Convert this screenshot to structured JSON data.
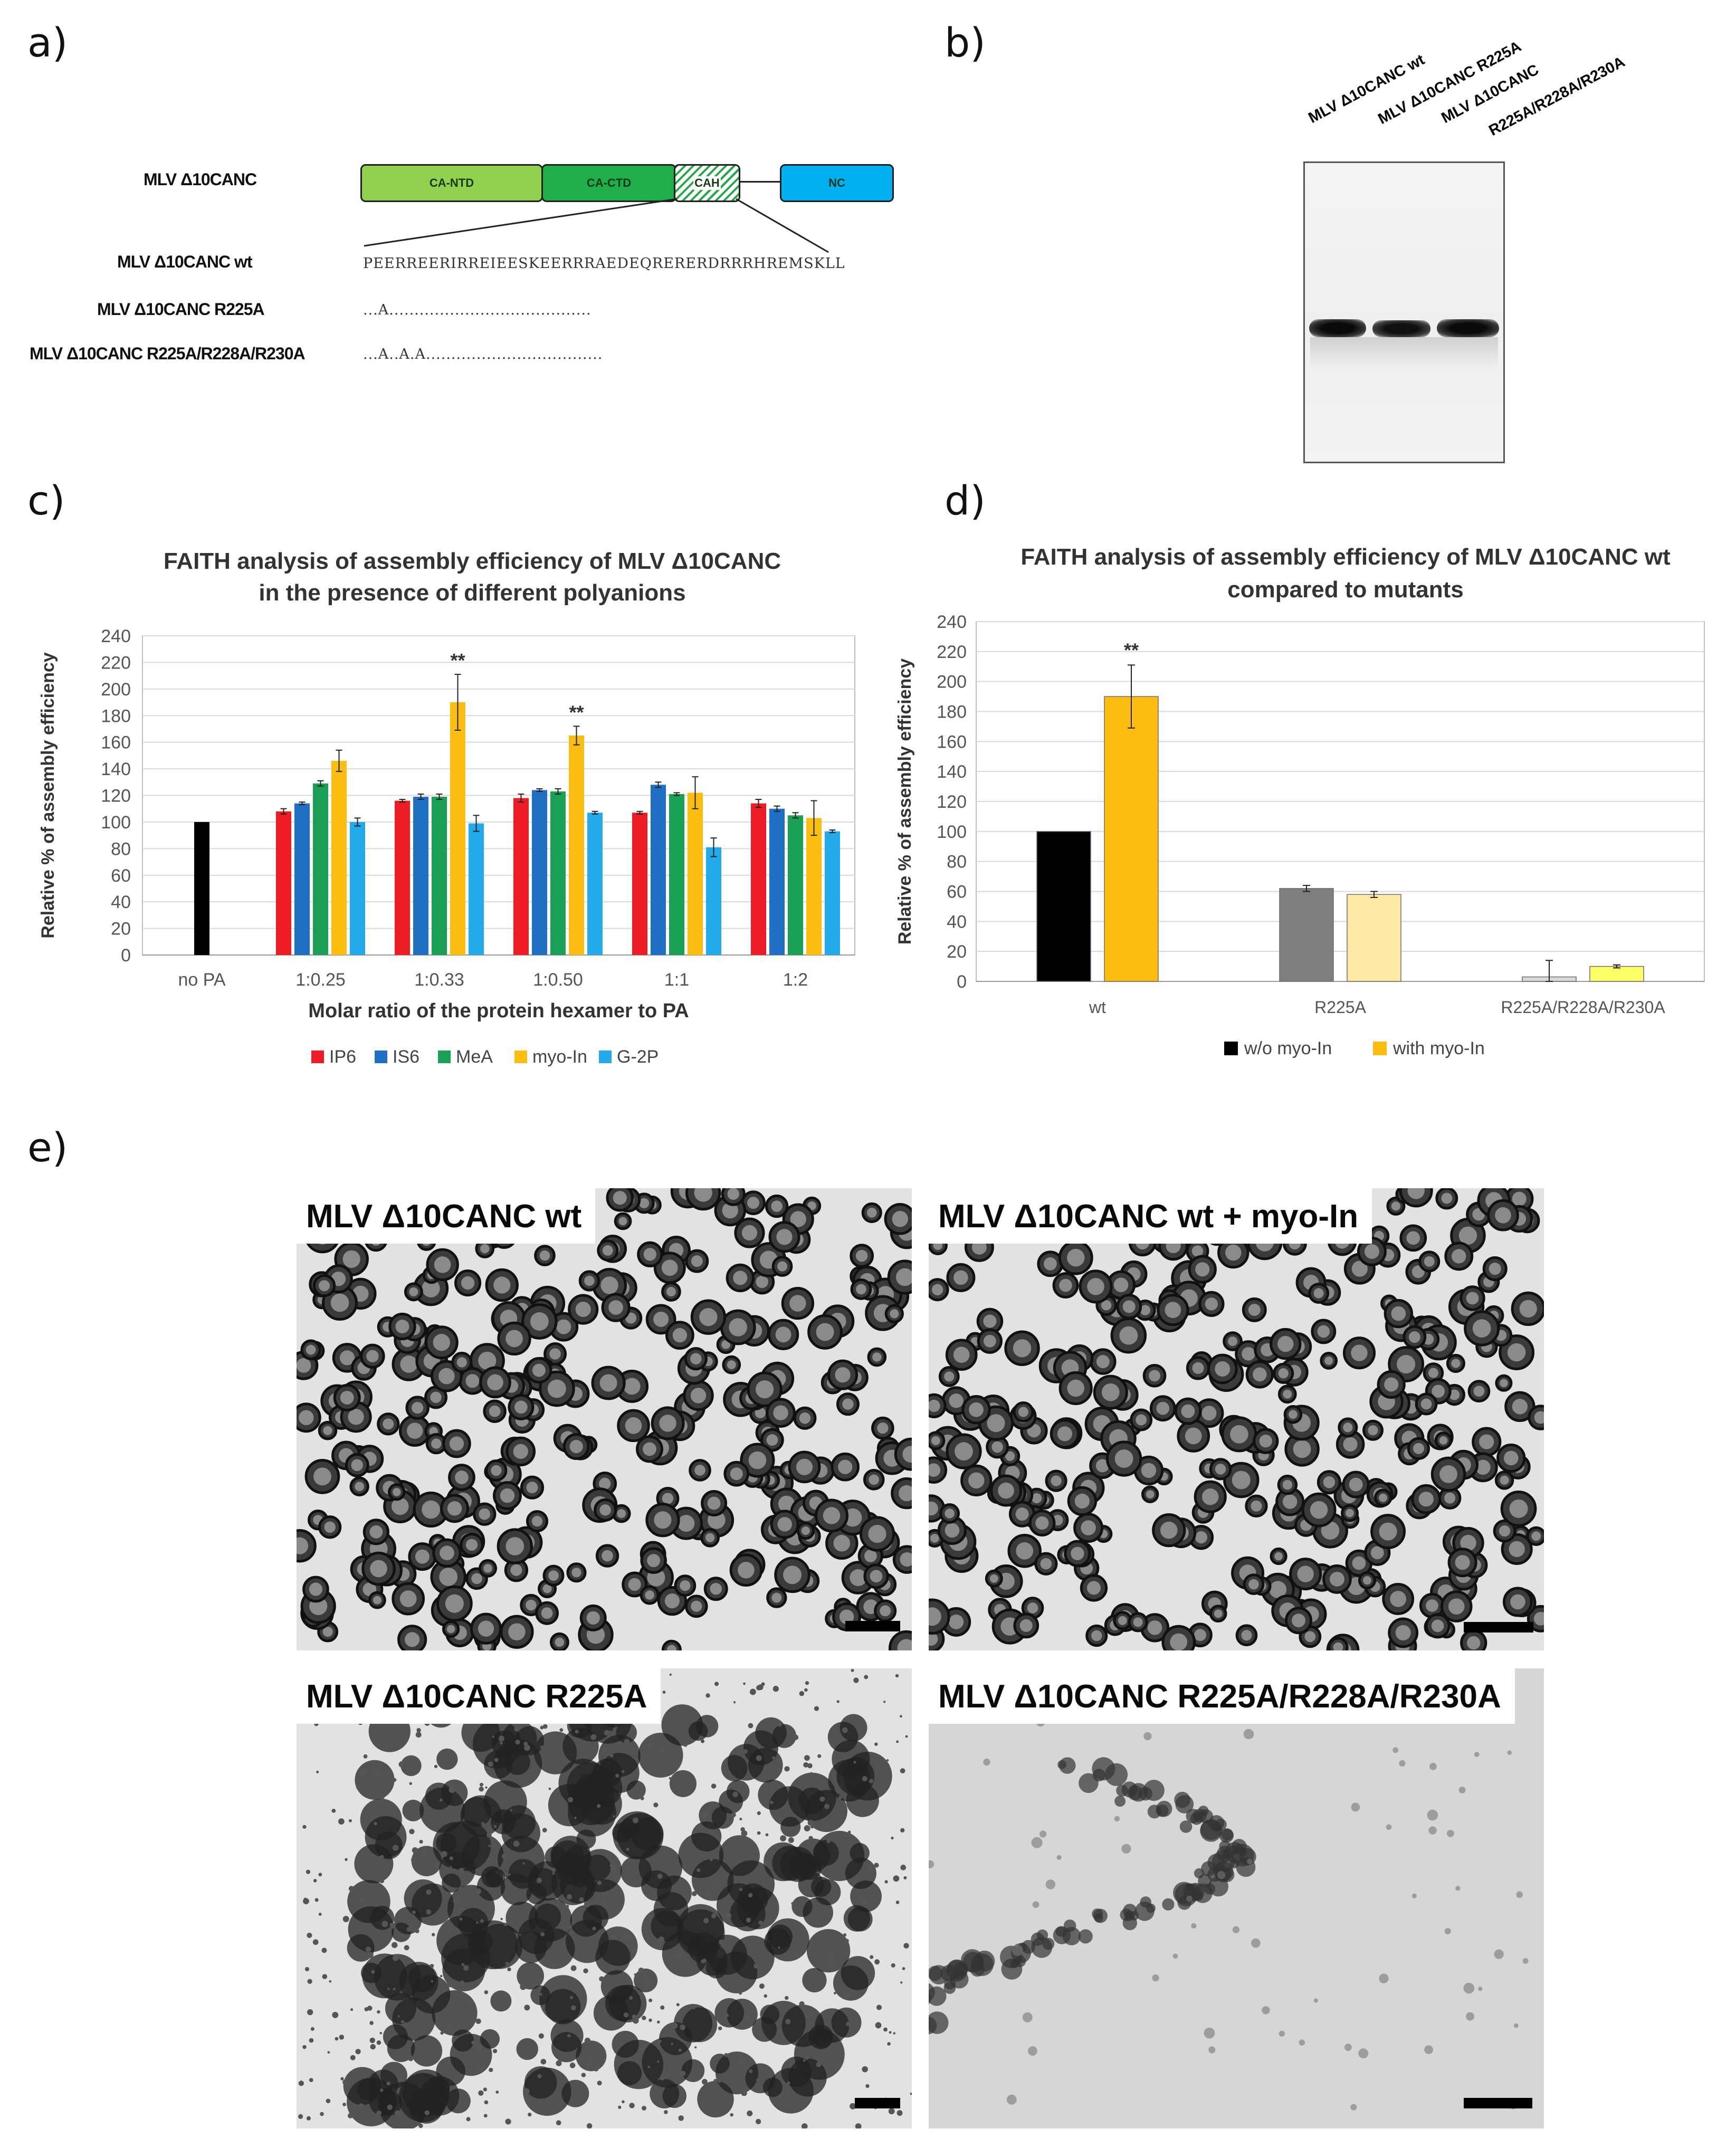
{
  "panels": {
    "a": "a)",
    "b": "b)",
    "c": "c)",
    "d": "d)",
    "e": "e)"
  },
  "construct": {
    "name": "MLV Δ10CANC",
    "domains": [
      "CA-NTD",
      "CA-CTD",
      "CAH",
      "NC"
    ]
  },
  "sequences": [
    {
      "name": "MLV Δ10CANC wt",
      "text": "PEERREERIRREIEESKEERRRAEDEQRERERDRRRHREMSKLL"
    },
    {
      "name": "MLV Δ10CANC R225A",
      "text": "...A........................................"
    },
    {
      "name": "MLV Δ10CANC R225A/R228A/R230A",
      "text": "...A..A.A..................................."
    }
  ],
  "gel": {
    "lanes": [
      "MLV Δ10CANC wt",
      "MLV Δ10CANC R225A",
      "MLV Δ10CANC",
      "R225A/R228A/R230A"
    ]
  },
  "chart_data": [
    {
      "type": "bar",
      "title": "FAITH analysis of assembly efficiency of MLV Δ10CANC",
      "subtitle": "in the presence of different polyanions",
      "xlabel": "Molar ratio of the protein hexamer to PA",
      "ylabel": "Relative % of assembly efficiency",
      "ylim": [
        0,
        240
      ],
      "yticks": [
        0,
        20,
        40,
        60,
        80,
        100,
        120,
        140,
        160,
        180,
        200,
        220,
        240
      ],
      "categories": [
        "no PA",
        "1:0.25",
        "1:0.33",
        "1:0.50",
        "1:1",
        "1:2"
      ],
      "grid": true,
      "legend_position": "bottom",
      "control": {
        "category": "no PA",
        "value": 100,
        "color": "#000000"
      },
      "series": [
        {
          "name": "IP6",
          "color": "#ee1c25",
          "values": [
            null,
            108,
            116,
            118,
            107,
            114
          ],
          "errors": [
            null,
            2,
            1,
            3,
            1,
            3
          ]
        },
        {
          "name": "IS6",
          "color": "#1f6fc4",
          "values": [
            null,
            114,
            119,
            124,
            128,
            110
          ],
          "errors": [
            null,
            1,
            2,
            1,
            2,
            2
          ]
        },
        {
          "name": "MeA",
          "color": "#1aa055",
          "values": [
            null,
            129,
            119,
            123,
            121,
            105
          ],
          "errors": [
            null,
            2,
            2,
            2,
            1,
            2
          ]
        },
        {
          "name": "myo-In",
          "color": "#fbbd0f",
          "values": [
            null,
            146,
            190,
            165,
            122,
            103
          ],
          "errors": [
            null,
            8,
            21,
            7,
            12,
            13
          ]
        },
        {
          "name": "G-2P",
          "color": "#22aaea",
          "values": [
            null,
            100,
            99,
            107,
            81,
            93
          ],
          "errors": [
            null,
            3,
            6,
            1,
            7,
            1
          ]
        }
      ],
      "annotations": [
        {
          "category": "1:0.33",
          "series": "myo-In",
          "text": "**"
        },
        {
          "category": "1:0.50",
          "series": "myo-In",
          "text": "**"
        }
      ]
    },
    {
      "type": "bar",
      "title": "FAITH analysis of assembly efficiency of MLV Δ10CANC wt",
      "subtitle": "compared to mutants",
      "ylabel": "Relative % of assembly efficiency",
      "ylim": [
        0,
        240
      ],
      "yticks": [
        0,
        20,
        40,
        60,
        80,
        100,
        120,
        140,
        160,
        180,
        200,
        220,
        240
      ],
      "categories": [
        "wt",
        "R225A",
        "R225A/R228A/R230A"
      ],
      "grid": true,
      "legend_position": "bottom",
      "series": [
        {
          "name": "w/o myo-In",
          "colors": [
            "#000000",
            "#7f7f7f",
            "#d9d9d9"
          ],
          "values": [
            100,
            62,
            3
          ],
          "errors": [
            0,
            2,
            11
          ]
        },
        {
          "name": "with myo-In",
          "colors": [
            "#fbbd0f",
            "#fde9a4",
            "#ffff66"
          ],
          "values": [
            190,
            58,
            10
          ],
          "errors": [
            21,
            2,
            1
          ]
        }
      ],
      "annotations": [
        {
          "category": "wt",
          "series": "with myo-In",
          "text": "**"
        }
      ]
    }
  ],
  "micrographs": [
    {
      "caption": "MLV Δ10CANC wt"
    },
    {
      "caption": "MLV Δ10CANC wt + myo-In"
    },
    {
      "caption": "MLV Δ10CANC R225A"
    },
    {
      "caption": "MLV Δ10CANC R225A/R228A/R230A"
    }
  ]
}
